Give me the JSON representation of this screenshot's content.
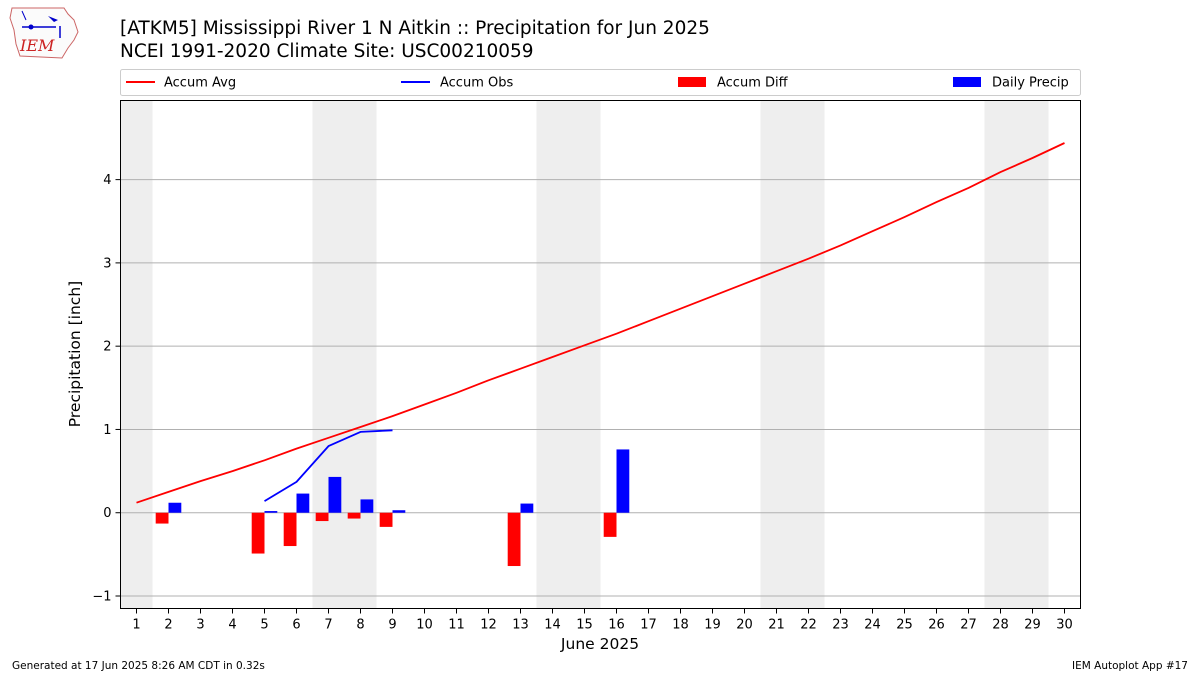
{
  "header": {
    "title_line1": "[ATKM5] Mississippi River 1 N Aitkin :: Precipitation for Jun 2025",
    "title_line2": "NCEI 1991-2020 Climate Site: USC00210059"
  },
  "logo": {
    "text": "IEM"
  },
  "footer": {
    "left": "Generated at 17 Jun 2025 8:26 AM CDT in 0.32s",
    "right": "IEM Autoplot App #17"
  },
  "colors": {
    "accum_avg": "#ff0000",
    "accum_obs": "#0000ff",
    "accum_diff": "#ff0000",
    "daily_precip": "#0000ff",
    "weekend_band": "#eeeeee"
  },
  "chart_data": {
    "type": "bar",
    "xlabel": "June 2025",
    "ylabel": "Precipitation [inch]",
    "xlim": [
      0.5,
      30.5
    ],
    "ylim": [
      -1.15,
      4.95
    ],
    "x_ticks": [
      1,
      2,
      3,
      4,
      5,
      6,
      7,
      8,
      9,
      10,
      11,
      12,
      13,
      14,
      15,
      16,
      17,
      18,
      19,
      20,
      21,
      22,
      23,
      24,
      25,
      26,
      27,
      28,
      29,
      30
    ],
    "y_ticks": [
      -1,
      0,
      1,
      2,
      3,
      4
    ],
    "grid": "horizontal",
    "weekend_days": [
      1,
      7,
      8,
      14,
      15,
      21,
      22,
      28,
      29
    ],
    "legend": {
      "placement": "top",
      "entries": [
        "Accum Avg",
        "Accum Obs",
        "Accum Diff",
        "Daily Precip"
      ]
    },
    "series": [
      {
        "name": "Accum Avg",
        "type": "line",
        "x": [
          1,
          2,
          3,
          4,
          5,
          6,
          7,
          8,
          9,
          10,
          11,
          12,
          13,
          14,
          15,
          16,
          17,
          18,
          19,
          20,
          21,
          22,
          23,
          24,
          25,
          26,
          27,
          28,
          29,
          30
        ],
        "values": [
          0.12,
          0.25,
          0.38,
          0.5,
          0.63,
          0.77,
          0.9,
          1.03,
          1.16,
          1.3,
          1.44,
          1.59,
          1.73,
          1.87,
          2.01,
          2.15,
          2.3,
          2.45,
          2.6,
          2.75,
          2.9,
          3.05,
          3.21,
          3.38,
          3.55,
          3.73,
          3.9,
          4.09,
          4.26,
          4.44
        ]
      },
      {
        "name": "Accum Obs",
        "type": "line",
        "x": [
          5,
          6,
          7,
          8,
          9
        ],
        "values": [
          0.14,
          0.37,
          0.8,
          0.97,
          0.99
        ]
      },
      {
        "name": "Accum Diff",
        "type": "bar",
        "x": [
          2,
          5,
          6,
          7,
          8,
          9,
          13,
          16
        ],
        "values": [
          -0.13,
          -0.49,
          -0.4,
          -0.1,
          -0.07,
          -0.17,
          -0.64,
          -0.29
        ]
      },
      {
        "name": "Daily Precip",
        "type": "bar",
        "x": [
          2,
          5,
          6,
          7,
          8,
          9,
          13,
          16
        ],
        "values": [
          0.12,
          0.02,
          0.23,
          0.43,
          0.16,
          0.03,
          0.11,
          0.76
        ]
      }
    ]
  }
}
